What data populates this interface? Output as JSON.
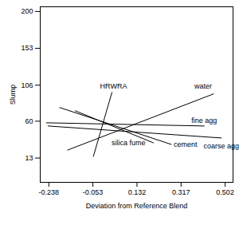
{
  "chart_data": {
    "type": "line",
    "xlabel": "Deviation from Reference Blend",
    "ylabel": "Slump",
    "xlim": [
      -0.274,
      0.535
    ],
    "xticks": [
      -0.238,
      -0.053,
      0.132,
      0.317,
      0.502
    ],
    "ylim": [
      -18,
      206
    ],
    "yticks": [
      13,
      60,
      106,
      153,
      200
    ],
    "grid": false,
    "series": [
      {
        "name": "HRWRA",
        "color": "#000000",
        "x": [
          -0.051,
          0.027
        ],
        "values": [
          15.1,
          96.8
        ]
      },
      {
        "name": "water",
        "color": "#000000",
        "x": [
          -0.159,
          0.453
        ],
        "values": [
          23.2,
          94.8
        ]
      },
      {
        "name": "fine agg",
        "color": "#000000",
        "x": [
          -0.248,
          0.414
        ],
        "values": [
          58.0,
          53.9
        ]
      },
      {
        "name": "coarse agg",
        "color": "#000000",
        "x": [
          -0.241,
          0.486
        ],
        "values": [
          53.9,
          38.6
        ]
      },
      {
        "name": "silica fume",
        "color": "#000000",
        "x": [
          -0.127,
          0.201
        ],
        "values": [
          73.3,
          32.4
        ]
      },
      {
        "name": "cement",
        "color": "#000000",
        "x": [
          -0.192,
          0.276
        ],
        "values": [
          77.4,
          30.4
        ]
      }
    ]
  }
}
